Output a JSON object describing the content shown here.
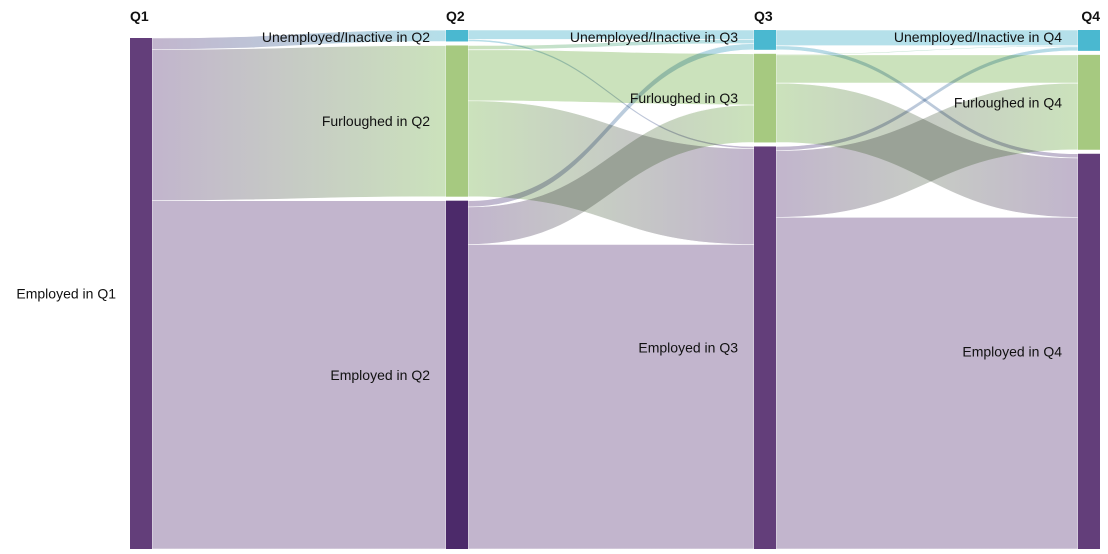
{
  "chart_data": {
    "type": "sankey",
    "columns": [
      {
        "id": "q1",
        "label": "Q1"
      },
      {
        "id": "q2",
        "label": "Q2"
      },
      {
        "id": "q3",
        "label": "Q3"
      },
      {
        "id": "q4",
        "label": "Q4"
      }
    ],
    "nodes": [
      {
        "id": "emp_q1",
        "column": 0,
        "category": "employed",
        "label": "Employed in Q1",
        "value": 490
      },
      {
        "id": "unemp_q2",
        "column": 1,
        "category": "unemployed",
        "label": "Unemployed/Inactive in Q2",
        "value": 11
      },
      {
        "id": "furl_q2",
        "column": 1,
        "category": "furloughed",
        "label": "Furloughed in Q2",
        "value": 145
      },
      {
        "id": "emp_q2",
        "column": 1,
        "category": "employed2",
        "label": "Employed in Q2",
        "value": 334
      },
      {
        "id": "unemp_q3",
        "column": 2,
        "category": "unemployed",
        "label": "Unemployed/Inactive in Q3",
        "value": 19
      },
      {
        "id": "furl_q3",
        "column": 2,
        "category": "furloughed",
        "label": "Furloughed in Q3",
        "value": 85
      },
      {
        "id": "emp_q3",
        "column": 2,
        "category": "employed",
        "label": "Employed in Q3",
        "value": 386
      },
      {
        "id": "unemp_q4",
        "column": 3,
        "category": "unemployed",
        "label": "Unemployed/Inactive in Q4",
        "value": 20
      },
      {
        "id": "furl_q4",
        "column": 3,
        "category": "furloughed",
        "label": "Furloughed in Q4",
        "value": 91
      },
      {
        "id": "emp_q4",
        "column": 3,
        "category": "employed",
        "label": "Employed in Q4",
        "value": 379
      }
    ],
    "links": [
      {
        "source": "emp_q1",
        "target": "unemp_q2",
        "value": 11
      },
      {
        "source": "emp_q1",
        "target": "furl_q2",
        "value": 145
      },
      {
        "source": "emp_q1",
        "target": "emp_q2",
        "value": 334
      },
      {
        "source": "unemp_q2",
        "target": "unemp_q3",
        "value": 9
      },
      {
        "source": "unemp_q2",
        "target": "emp_q3",
        "value": 2
      },
      {
        "source": "furl_q2",
        "target": "unemp_q3",
        "value": 4
      },
      {
        "source": "furl_q2",
        "target": "furl_q3",
        "value": 49
      },
      {
        "source": "furl_q2",
        "target": "emp_q3",
        "value": 92
      },
      {
        "source": "emp_q2",
        "target": "unemp_q3",
        "value": 6
      },
      {
        "source": "emp_q2",
        "target": "furl_q3",
        "value": 36
      },
      {
        "source": "emp_q2",
        "target": "emp_q3",
        "value": 292
      },
      {
        "source": "unemp_q3",
        "target": "unemp_q4",
        "value": 15
      },
      {
        "source": "unemp_q3",
        "target": "emp_q4",
        "value": 4
      },
      {
        "source": "furl_q3",
        "target": "unemp_q4",
        "value": 1
      },
      {
        "source": "furl_q3",
        "target": "furl_q4",
        "value": 27
      },
      {
        "source": "furl_q3",
        "target": "emp_q4",
        "value": 57
      },
      {
        "source": "emp_q3",
        "target": "unemp_q4",
        "value": 4
      },
      {
        "source": "emp_q3",
        "target": "furl_q4",
        "value": 64
      },
      {
        "source": "emp_q3",
        "target": "emp_q4",
        "value": 318
      }
    ],
    "colors": {
      "employed": "#633e7a",
      "employed2": "#4c2a6a",
      "furloughed": "#a6c980",
      "unemployed": "#4ab8d0",
      "link_employed": "#b7a8c4",
      "link_furloughed": "#c2ddb0",
      "link_unemployed": "#a8dae6"
    }
  }
}
